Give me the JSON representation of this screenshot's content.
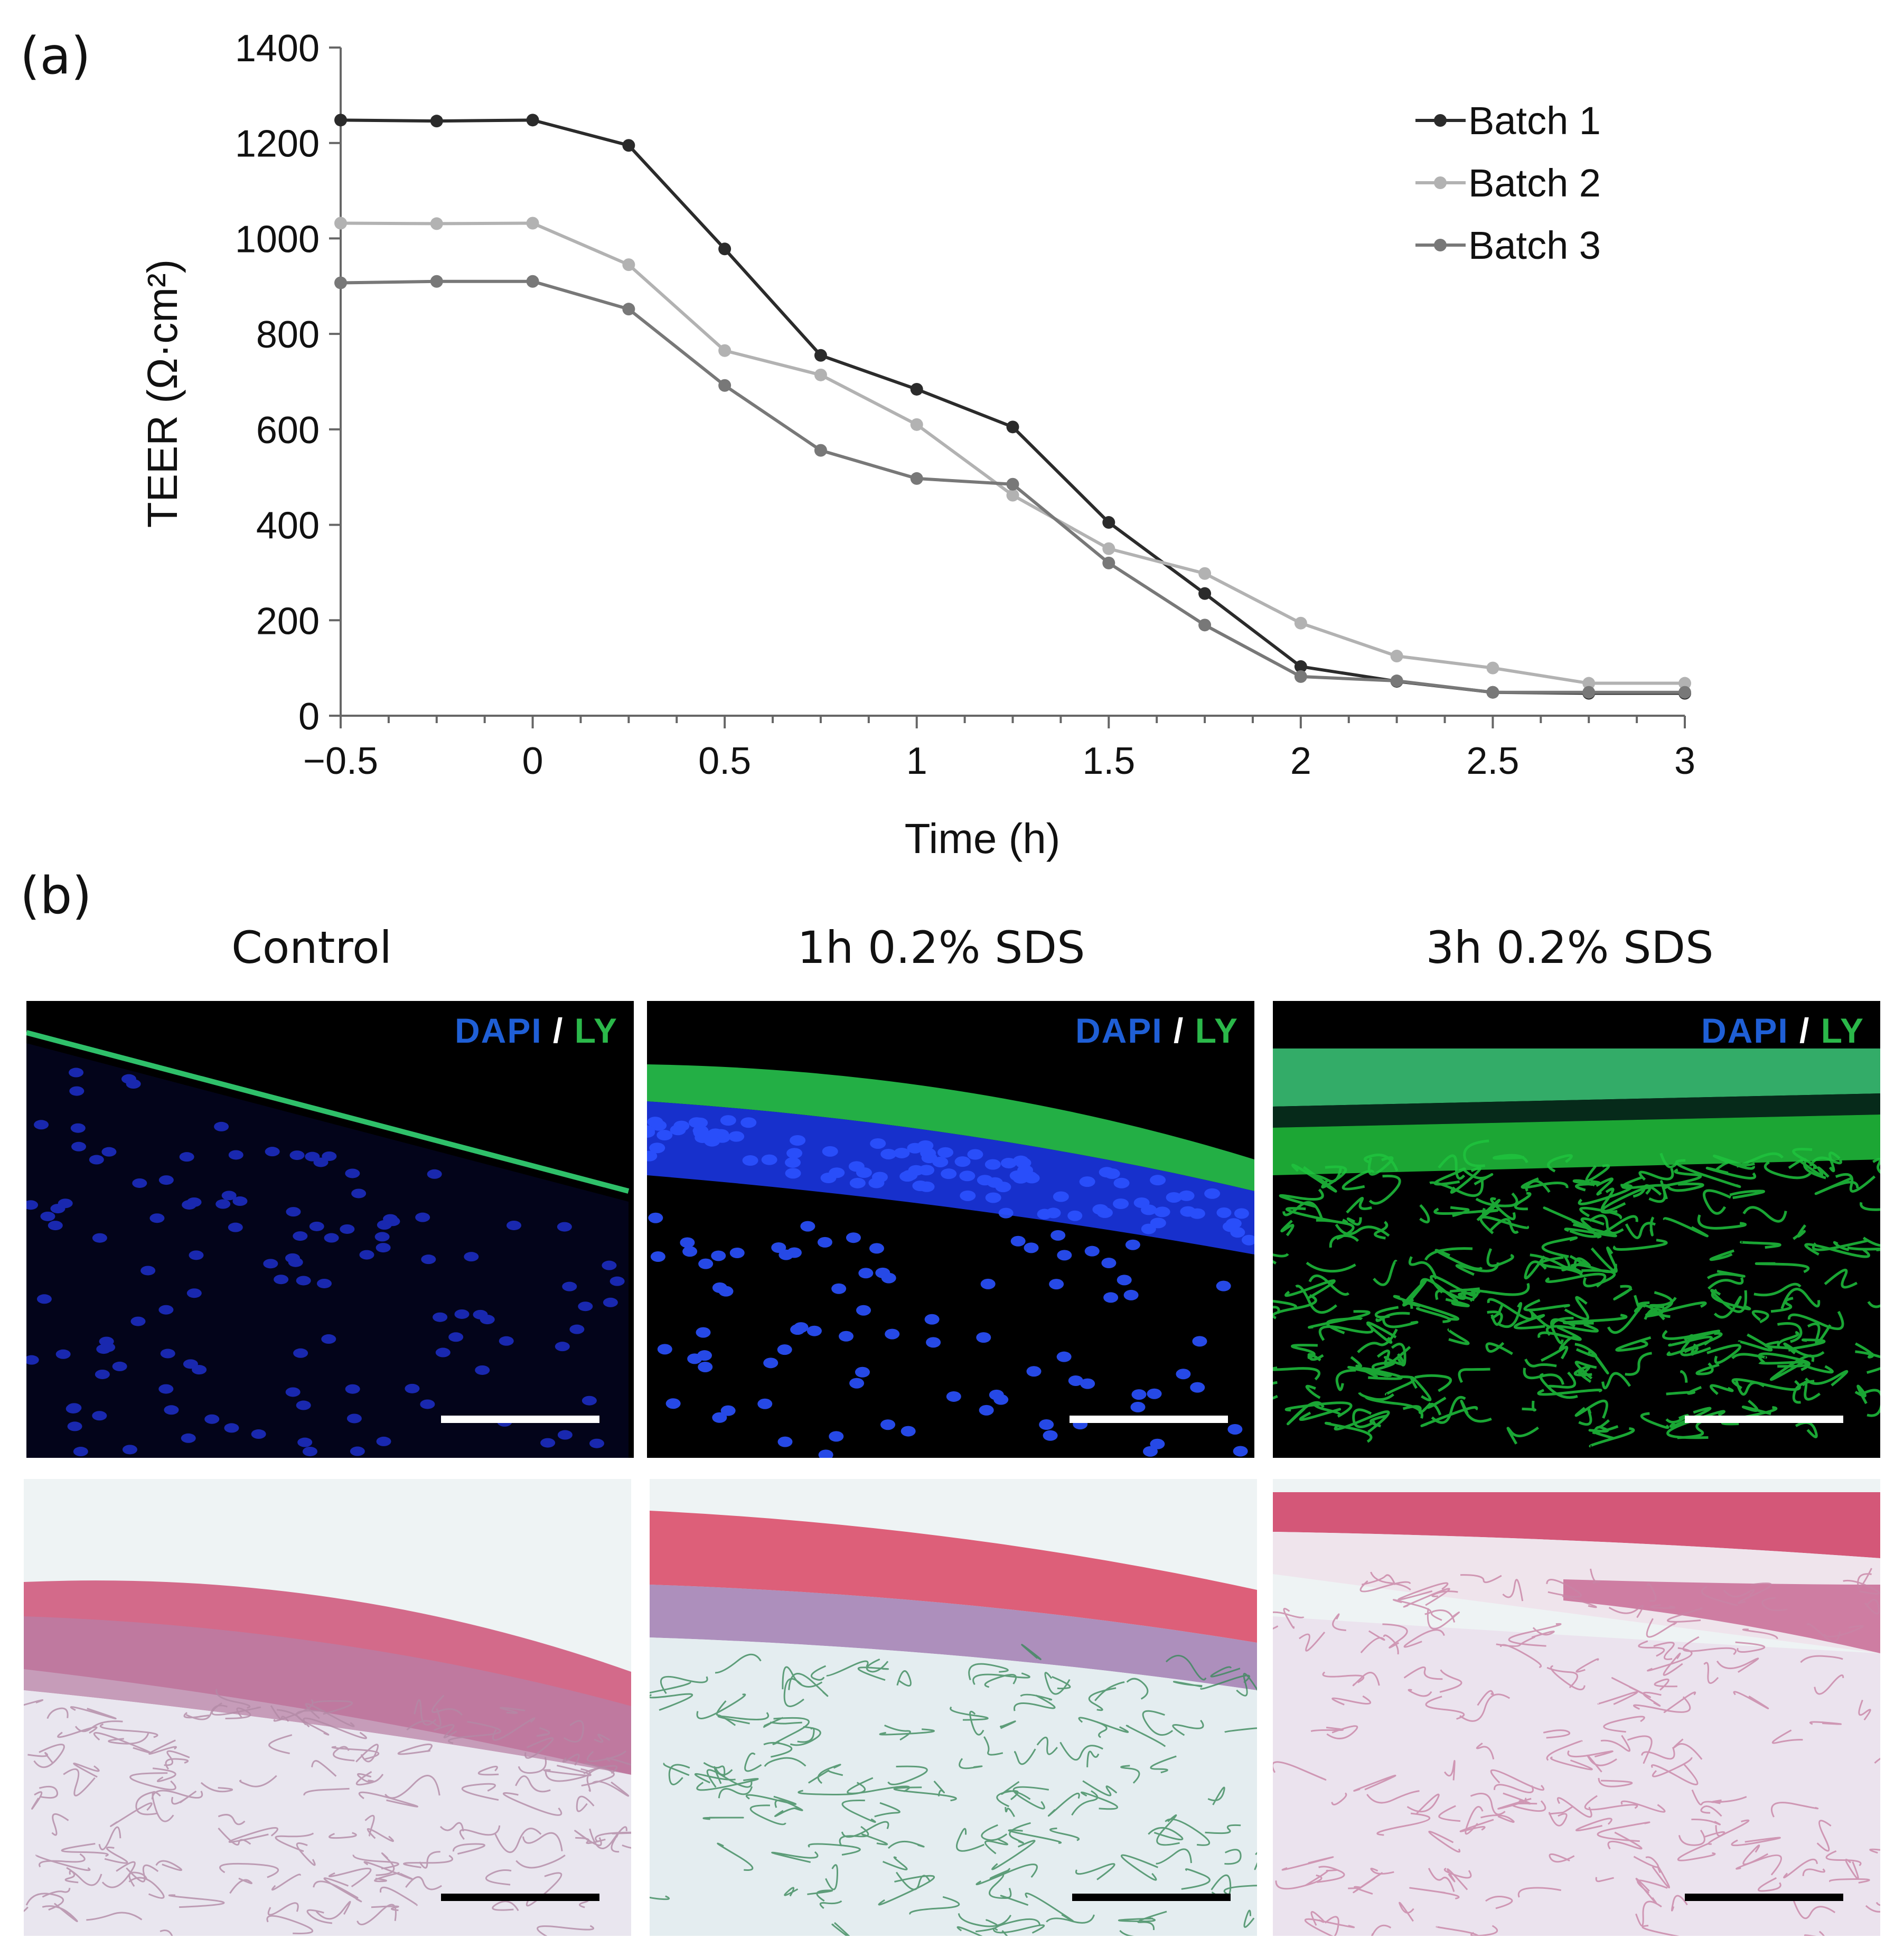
{
  "panels": {
    "a": "(a)",
    "b": "(b)"
  },
  "chart_data": {
    "type": "line",
    "xlabel": "Time (h)",
    "ylabel": "TEER (Ω·cm²)",
    "xlim": [
      -0.5,
      3
    ],
    "ylim": [
      0,
      1400
    ],
    "xticks": [
      "−0.5",
      "0",
      "0.5",
      "1",
      "1.5",
      "2",
      "2.5",
      "3"
    ],
    "xtick_values": [
      -0.5,
      0,
      0.5,
      1,
      1.5,
      2,
      2.5,
      3
    ],
    "yticks": [
      0,
      200,
      400,
      600,
      800,
      1000,
      1200,
      1400
    ],
    "grid": false,
    "legend": "top-right",
    "x": [
      -0.5,
      -0.25,
      0,
      0.25,
      0.5,
      0.75,
      1,
      1.25,
      1.5,
      1.75,
      2,
      2.25,
      2.5,
      2.75,
      3
    ],
    "series": [
      {
        "name": "Batch 1",
        "color": "#2b2b2b",
        "values": [
          1248,
          1246,
          1248,
          1195,
          978,
          755,
          684,
          605,
          405,
          256,
          103,
          72,
          49,
          47,
          47
        ]
      },
      {
        "name": "Batch 2",
        "color": "#b2b2b2",
        "values": [
          1032,
          1031,
          1032,
          945,
          765,
          714,
          610,
          462,
          350,
          298,
          194,
          125,
          100,
          68,
          68
        ]
      },
      {
        "name": "Batch 3",
        "color": "#787878",
        "values": [
          907,
          910,
          910,
          852,
          692,
          556,
          497,
          485,
          320,
          190,
          82,
          73,
          49,
          49,
          49
        ]
      }
    ]
  },
  "micrographs": {
    "columns": [
      "Control",
      "1h 0.2% SDS",
      "3h 0.2% SDS"
    ],
    "stain": {
      "dapi": "DAPI",
      "slash": "/",
      "ly": "LY"
    }
  }
}
